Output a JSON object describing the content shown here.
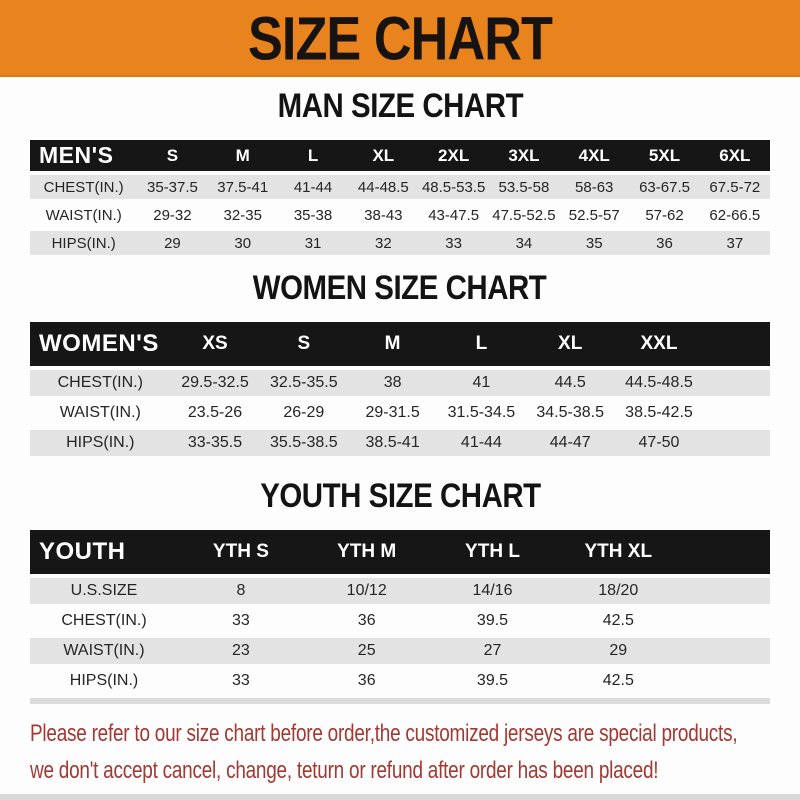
{
  "banner": {
    "title": "SIZE CHART",
    "bg_color": "#E8831D"
  },
  "colors": {
    "header_bg": "#161616",
    "row_gray": "#e3e3e3",
    "footer_red": "#a13a33"
  },
  "men": {
    "heading": "MAN SIZE CHART",
    "table": {
      "corner": "MEN'S",
      "columns": [
        "S",
        "M",
        "L",
        "XL",
        "2XL",
        "3XL",
        "4XL",
        "5XL",
        "6XL"
      ],
      "rows": [
        {
          "label": "CHEST(IN.)",
          "values": [
            "35-37.5",
            "37.5-41",
            "41-44",
            "44-48.5",
            "48.5-53.5",
            "53.5-58",
            "58-63",
            "63-67.5",
            "67.5-72"
          ]
        },
        {
          "label": "WAIST(IN.)",
          "values": [
            "29-32",
            "32-35",
            "35-38",
            "38-43",
            "43-47.5",
            "47.5-52.5",
            "52.5-57",
            "57-62",
            "62-66.5"
          ]
        },
        {
          "label": "HIPS(IN.)",
          "values": [
            "29",
            "30",
            "31",
            "32",
            "33",
            "34",
            "35",
            "36",
            "37"
          ]
        }
      ]
    }
  },
  "women": {
    "heading": "WOMEN SIZE CHART",
    "table": {
      "corner": "WOMEN'S",
      "columns": [
        "XS",
        "S",
        "M",
        "L",
        "XL",
        "XXL"
      ],
      "rows": [
        {
          "label": "CHEST(IN.)",
          "values": [
            "29.5-32.5",
            "32.5-35.5",
            "38",
            "41",
            "44.5",
            "44.5-48.5"
          ]
        },
        {
          "label": "WAIST(IN.)",
          "values": [
            "23.5-26",
            "26-29",
            "29-31.5",
            "31.5-34.5",
            "34.5-38.5",
            "38.5-42.5"
          ]
        },
        {
          "label": "HIPS(IN.)",
          "values": [
            "33-35.5",
            "35.5-38.5",
            "38.5-41",
            "41-44",
            "44-47",
            "47-50"
          ]
        }
      ]
    }
  },
  "youth": {
    "heading": "YOUTH SIZE CHART",
    "table": {
      "corner": "YOUTH",
      "columns": [
        "YTH S",
        "YTH M",
        "YTH L",
        "YTH XL"
      ],
      "rows": [
        {
          "label": "U.S.SIZE",
          "values": [
            "8",
            "10/12",
            "14/16",
            "18/20"
          ]
        },
        {
          "label": "CHEST(IN.)",
          "values": [
            "33",
            "36",
            "39.5",
            "42.5"
          ]
        },
        {
          "label": "WAIST(IN.)",
          "values": [
            "23",
            "25",
            "27",
            "29"
          ]
        },
        {
          "label": "HIPS(IN.)",
          "values": [
            "33",
            "36",
            "39.5",
            "42.5"
          ]
        }
      ]
    }
  },
  "footer": {
    "line1": "Please refer to our size chart before order,the customized jerseys are special products,",
    "line2": "we don't accept cancel, change, teturn or refund after order has been placed!"
  }
}
